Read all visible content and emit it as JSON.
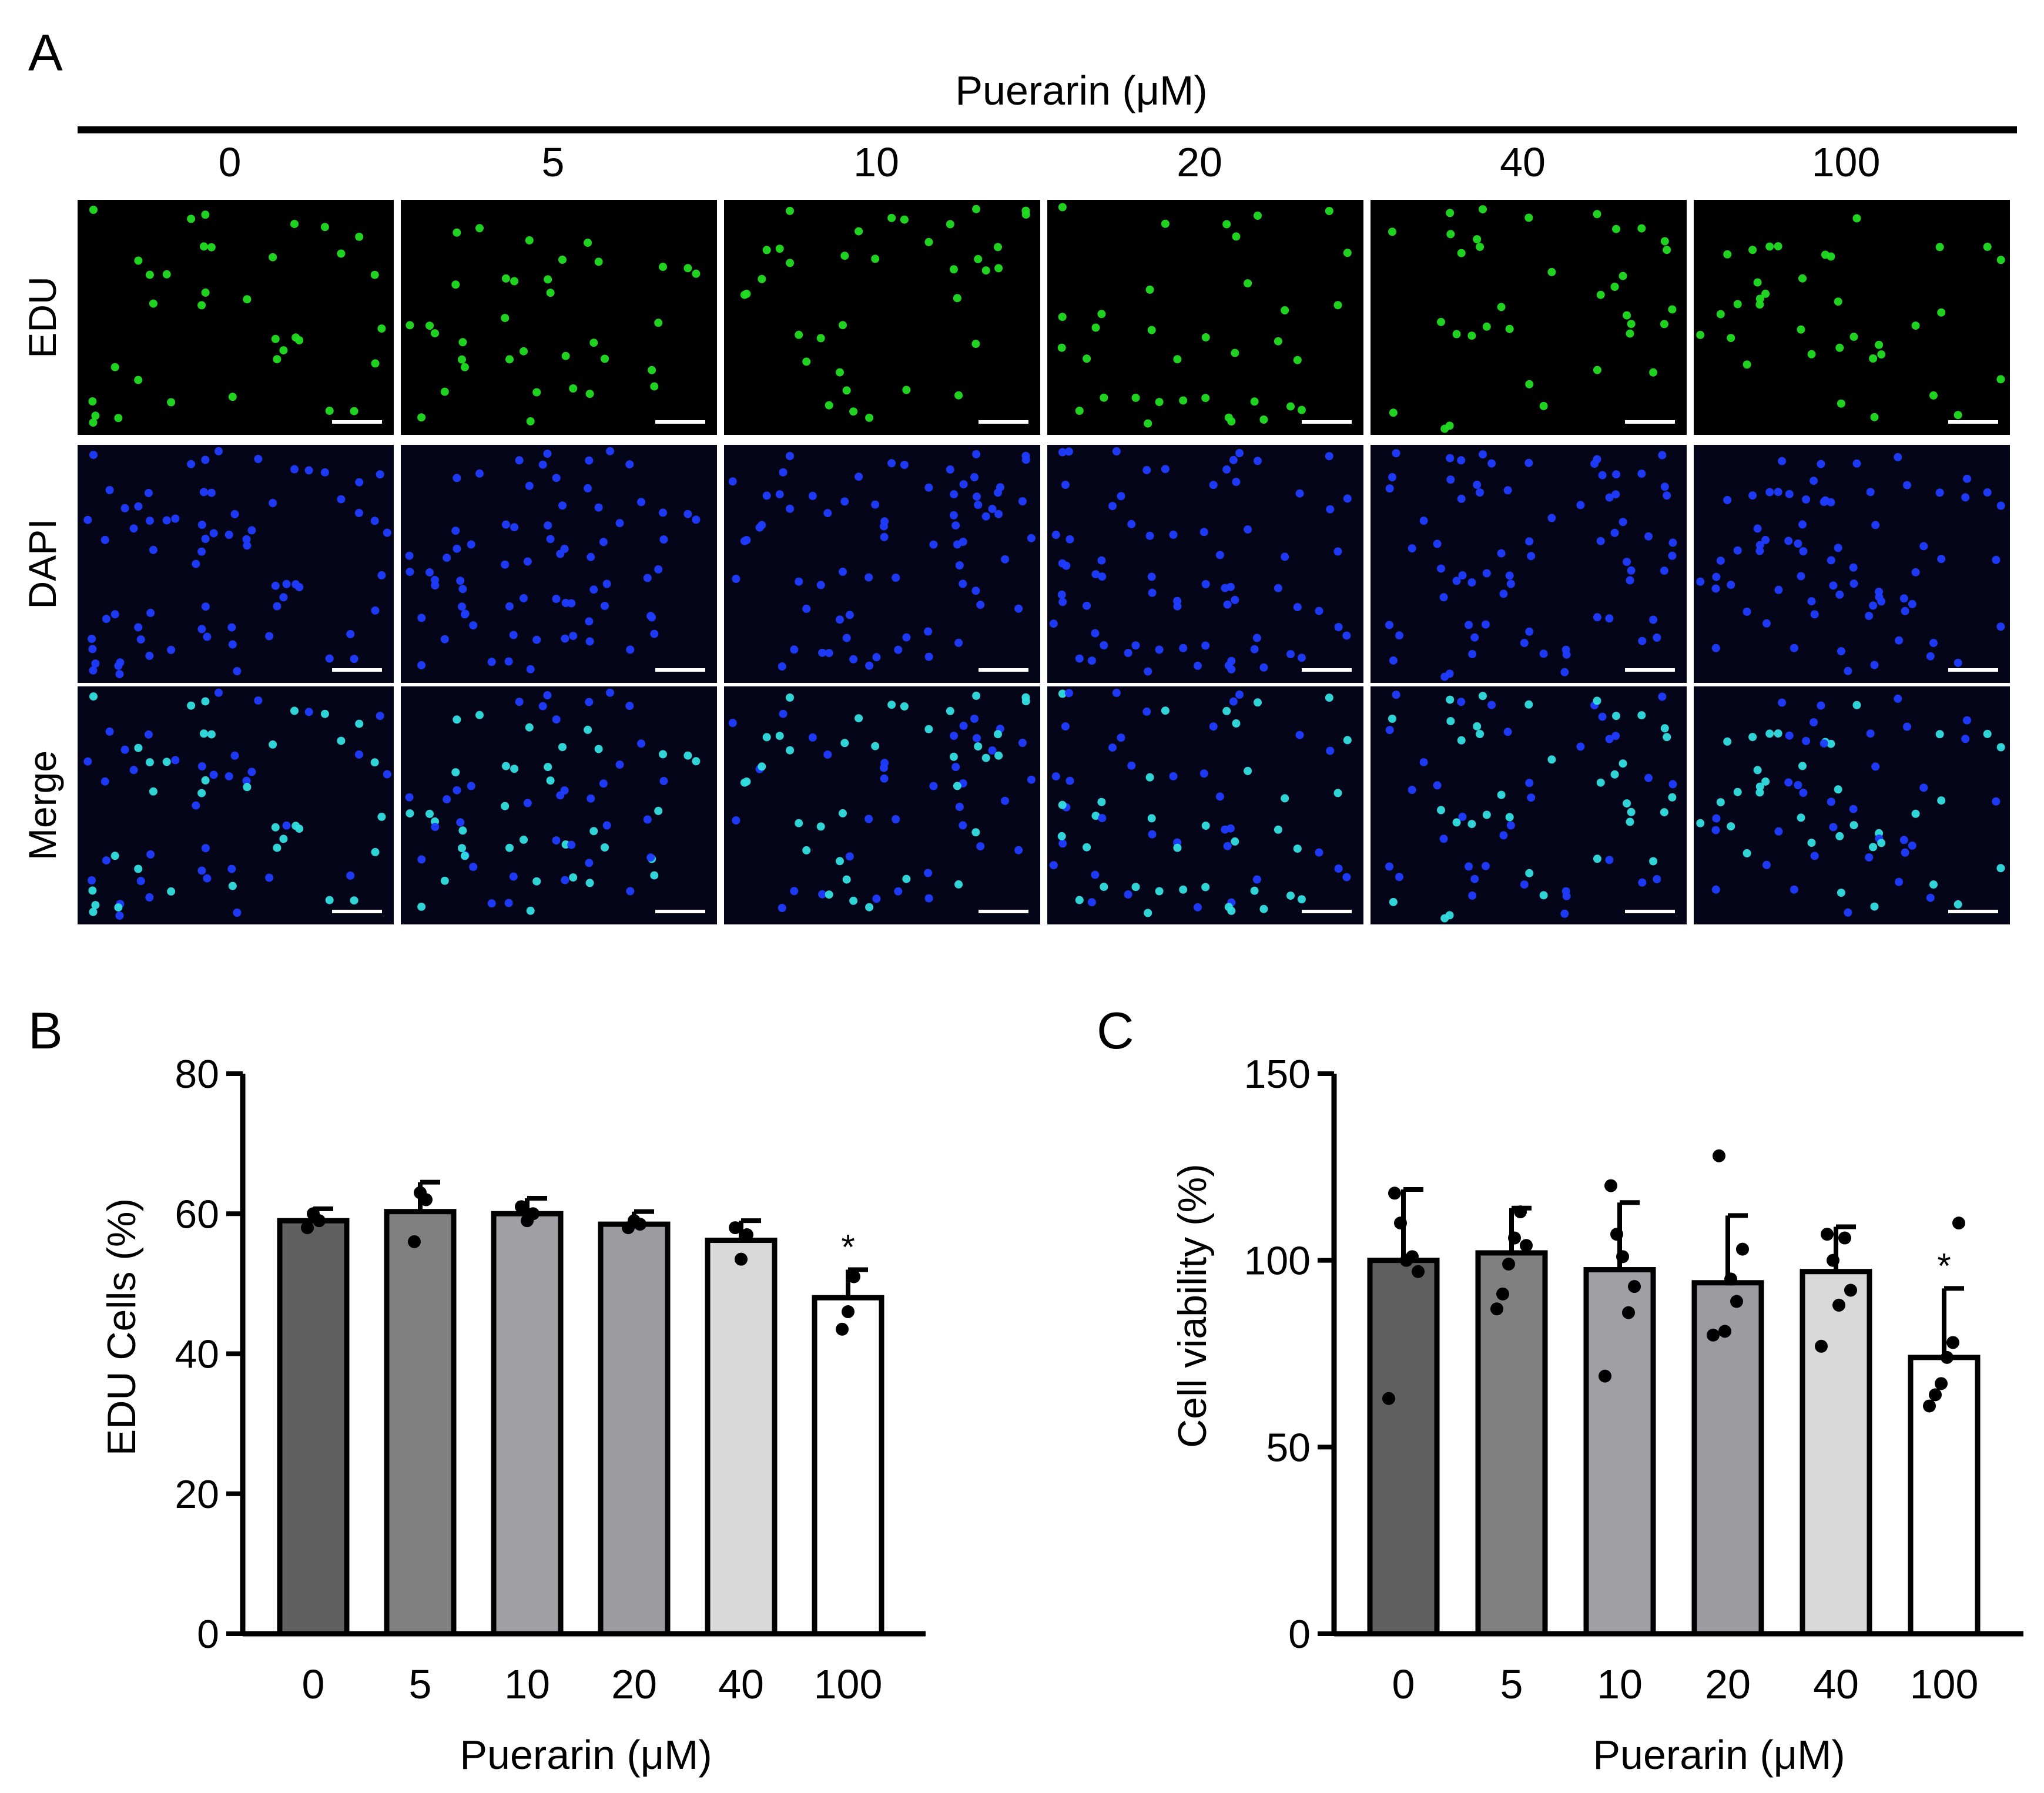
{
  "panel_a": {
    "letter": "A",
    "treatment_label": "Puerarin (μM)",
    "concentrations": [
      "0",
      "5",
      "10",
      "20",
      "40",
      "100"
    ],
    "rows": [
      "EDU",
      "DAPI",
      "Merge"
    ],
    "row_colors": {
      "EDU": "#22dd22",
      "DAPI": "#1f3cff",
      "Merge": "#33dfe0"
    }
  },
  "chart_data": [
    {
      "panel": "B",
      "type": "bar",
      "categories": [
        "0",
        "5",
        "10",
        "20",
        "40",
        "100"
      ],
      "values": [
        59,
        60.3,
        60,
        58.5,
        56.2,
        48
      ],
      "error": [
        1.7,
        4.2,
        2.2,
        1.8,
        2.8,
        4
      ],
      "points": [
        [
          58,
          60,
          59
        ],
        [
          56,
          63,
          62
        ],
        [
          61,
          59,
          60
        ],
        [
          58,
          59,
          58.5
        ],
        [
          58,
          53.5,
          57
        ],
        [
          43.5,
          46,
          51
        ]
      ],
      "significance": [
        "",
        "",
        "",
        "",
        "",
        "*"
      ],
      "xlabel": "Puerarin (μM)",
      "ylabel": "EDU  Cells (%)",
      "ylim": [
        0,
        80
      ],
      "yticks": [
        0,
        20,
        40,
        60,
        80
      ],
      "bar_colors": [
        "#5f5f5f",
        "#808080",
        "#a0a0a4",
        "#9b9ba0",
        "#d9d9d9",
        "#ffffff"
      ]
    },
    {
      "panel": "C",
      "type": "bar",
      "categories": [
        "0",
        "5",
        "10",
        "20",
        "40",
        "100"
      ],
      "values": [
        100,
        102,
        97.5,
        94,
        97,
        74
      ],
      "error": [
        19,
        12,
        18,
        18,
        12,
        18.5
      ],
      "points": [
        [
          63,
          118,
          110,
          100,
          101,
          97
        ],
        [
          87,
          91,
          99,
          106,
          113,
          104
        ],
        [
          69,
          120,
          107,
          101,
          86,
          93
        ],
        [
          80,
          128,
          81,
          95,
          89,
          103
        ],
        [
          77,
          107,
          100,
          88,
          106,
          92
        ],
        [
          61,
          64,
          67,
          74,
          78,
          110
        ]
      ],
      "significance": [
        "",
        "",
        "",
        "",
        "",
        "*"
      ],
      "xlabel": "Puerarin (μM)",
      "ylabel": "Cell viability (%)",
      "ylim": [
        0,
        150
      ],
      "yticks": [
        0,
        50,
        100,
        150
      ],
      "bar_colors": [
        "#5f5f5f",
        "#808080",
        "#a0a0a4",
        "#9b9ba0",
        "#d9d9d9",
        "#ffffff"
      ]
    }
  ]
}
